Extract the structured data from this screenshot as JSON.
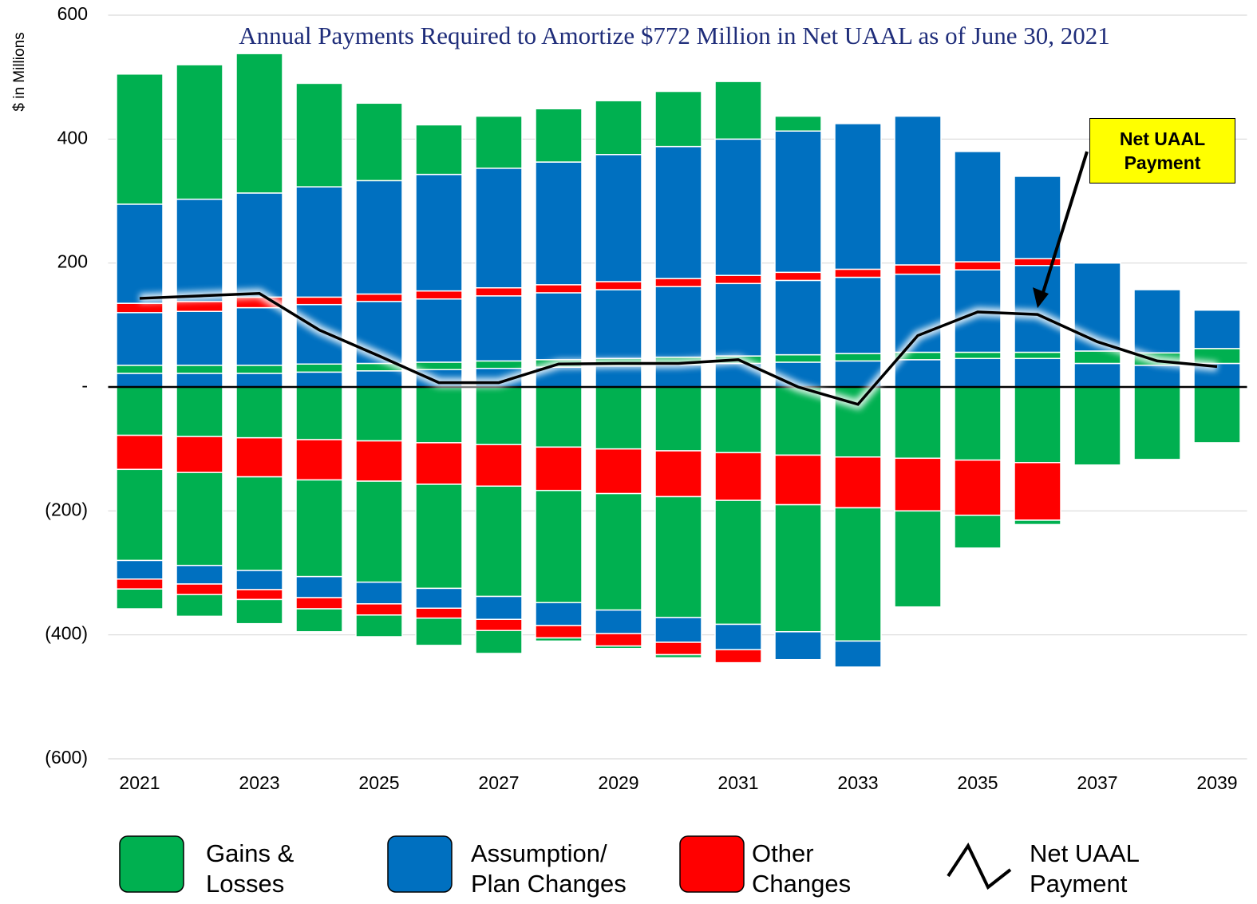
{
  "chart_data": {
    "type": "bar",
    "stacked": true,
    "title": "Annual Payments Required to Amortize $772 Million in Net UAAL as of June 30, 2021",
    "y_label": "$ in Millions",
    "categories": [
      "2021",
      null,
      "2023",
      null,
      "2025",
      null,
      "2027",
      null,
      "2029",
      null,
      "2031",
      null,
      "2033",
      null,
      "2035",
      null,
      "2037",
      null,
      "2039"
    ],
    "ylim": [
      -600,
      600
    ],
    "yticks": [
      600,
      400,
      200,
      {
        "value": 0,
        "label": "-"
      },
      {
        "value": -200,
        "label": "(200)"
      },
      {
        "value": -400,
        "label": "(400)"
      },
      {
        "value": -600,
        "label": "(600)"
      }
    ],
    "grid": true,
    "legend": "bottom",
    "series": [
      {
        "name": "Gains & Losses",
        "color": "#00b050",
        "values": [
          -78,
          -80,
          -82,
          -85,
          -87,
          -90,
          -93,
          -97,
          -100,
          -103,
          -106,
          -110,
          -113,
          -115,
          -118,
          -122,
          -126,
          -117,
          -90
        ]
      },
      {
        "name": "Assumption/ Plan Changes",
        "color": "#0070c0",
        "values": [
          22,
          22,
          22,
          24,
          26,
          28,
          30,
          32,
          34,
          36,
          38,
          40,
          42,
          44,
          46,
          46,
          38,
          35,
          38
        ]
      },
      {
        "name": "Other Changes",
        "color": "#ff0000",
        "values": [
          -55,
          -58,
          -63,
          -65,
          -65,
          -67,
          -67,
          -70,
          -72,
          -74,
          -77,
          -80,
          -82,
          -85,
          -89,
          -93,
          0,
          0,
          0
        ]
      },
      {
        "name": "Gains & Losses",
        "color": "#00b050",
        "values": [
          13,
          13,
          13,
          13,
          12,
          12,
          12,
          12,
          12,
          12,
          12,
          12,
          12,
          12,
          10,
          10,
          20,
          20,
          24
        ]
      },
      {
        "name": "Assumption/ Plan Changes",
        "color": "#0070c0",
        "values": [
          85,
          87,
          93,
          96,
          100,
          102,
          105,
          108,
          111,
          114,
          117,
          120,
          123,
          126,
          133,
          140,
          142,
          102,
          62
        ]
      },
      {
        "name": "Gains & Losses",
        "color": "#00b050",
        "values": [
          -147,
          -150,
          -151,
          -156,
          -163,
          -168,
          -178,
          -181,
          -188,
          -195,
          -200,
          -205,
          -215,
          -155,
          -53,
          -7,
          0,
          0,
          0
        ]
      },
      {
        "name": "Other Changes",
        "color": "#ff0000",
        "values": [
          15,
          16,
          17,
          12,
          12,
          13,
          13,
          13,
          13,
          13,
          13,
          13,
          13,
          15,
          13,
          11,
          0,
          0,
          0
        ]
      },
      {
        "name": "Assumption/ Plan Changes",
        "color": "#0070c0",
        "values": [
          -30,
          -30,
          -31,
          -34,
          -35,
          -32,
          -37,
          -37,
          -38,
          -40,
          -41,
          -45,
          -42,
          0,
          0,
          0,
          0,
          0,
          0
        ]
      },
      {
        "name": "Assumption/ Plan Changes",
        "color": "#0070c0",
        "values": [
          160,
          165,
          168,
          178,
          183,
          188,
          193,
          198,
          205,
          213,
          220,
          228,
          235,
          240,
          178,
          133,
          0,
          0,
          0
        ]
      },
      {
        "name": "Other Changes",
        "color": "#ff0000",
        "values": [
          -16,
          -17,
          -16,
          -18,
          -18,
          -16,
          -18,
          -20,
          -20,
          -20,
          -21,
          0,
          0,
          0,
          0,
          0,
          0,
          0,
          0
        ]
      },
      {
        "name": "Gains & Losses",
        "color": "#00b050",
        "values": [
          210,
          217,
          225,
          167,
          125,
          80,
          84,
          86,
          87,
          89,
          93,
          24,
          0,
          0,
          0,
          0,
          0,
          0,
          0
        ]
      },
      {
        "name": "Gains & Losses",
        "color": "#00b050",
        "values": [
          -32,
          -35,
          -39,
          -37,
          -35,
          -44,
          -37,
          -5,
          -4,
          -5,
          0,
          0,
          0,
          0,
          0,
          0,
          0,
          0,
          0
        ]
      },
      {
        "name": "Net UAAL Payment",
        "type": "line",
        "color": "#000000",
        "values": [
          143,
          147,
          151,
          92,
          50,
          7,
          7,
          37,
          38,
          38,
          44,
          0,
          -28,
          83,
          121,
          117,
          73,
          42,
          33
        ]
      }
    ],
    "annotation": {
      "text": "Net UAAL Payment",
      "color": "#ffff00",
      "target": 15
    }
  }
}
